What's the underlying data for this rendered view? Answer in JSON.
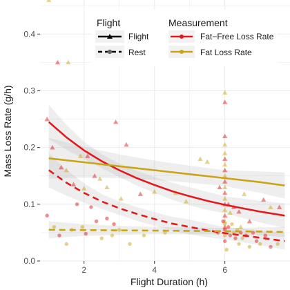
{
  "chart_data": {
    "type": "scatter",
    "xlabel": "Flight Duration (h)",
    "ylabel": "Mass Loss Rate (g/h)",
    "xlim": [
      0.75,
      7.85
    ],
    "ylim": [
      0,
      0.46
    ],
    "x_ticks": [
      2,
      4,
      6
    ],
    "x_tick_labels": [
      "2",
      "4",
      "6"
    ],
    "y_ticks": [
      0.0,
      0.1,
      0.2,
      0.3,
      0.4
    ],
    "y_tick_labels": [
      "0.0",
      "0.1",
      "0.2",
      "0.3",
      "0.4"
    ],
    "grid": true,
    "background": "#ffffff",
    "grid_color": "#ebebeb",
    "legend_placement": "top-center",
    "legends": [
      {
        "title": "Flight",
        "entries": [
          {
            "label": "Flight",
            "linetype": "solid",
            "shape": "triangle"
          },
          {
            "label": "Rest",
            "linetype": "dashed",
            "shape": "circle"
          }
        ]
      },
      {
        "title": "Measurement",
        "entries": [
          {
            "label": "Fat−Free Loss Rate",
            "color": "#e31a1c"
          },
          {
            "label": "Fat Loss Rate",
            "color": "#c9a515"
          }
        ]
      }
    ],
    "colors": {
      "Fat−Free Loss Rate": "#e31a1c",
      "Fat Loss Rate": "#c9a515",
      "ribbon": "#b3b3b3"
    },
    "fitted_curves": [
      {
        "measurement": "Fat−Free Loss Rate",
        "group": "Flight",
        "x": [
          1.0,
          1.5,
          2.0,
          2.5,
          3.0,
          3.5,
          4.0,
          4.5,
          5.0,
          5.5,
          6.0,
          6.5,
          7.0,
          7.7
        ],
        "y": [
          0.245,
          0.218,
          0.195,
          0.176,
          0.16,
          0.146,
          0.134,
          0.123,
          0.114,
          0.106,
          0.099,
          0.093,
          0.087,
          0.08
        ],
        "ci_low": [
          0.215,
          0.196,
          0.18,
          0.164,
          0.148,
          0.133,
          0.12,
          0.108,
          0.098,
          0.09,
          0.084,
          0.076,
          0.068,
          0.058
        ],
        "ci_high": [
          0.275,
          0.24,
          0.21,
          0.188,
          0.172,
          0.159,
          0.148,
          0.138,
          0.13,
          0.122,
          0.114,
          0.11,
          0.106,
          0.102
        ]
      },
      {
        "measurement": "Fat Loss Rate",
        "group": "Flight",
        "x": [
          1.0,
          2.0,
          3.0,
          4.0,
          5.0,
          6.0,
          7.0,
          7.7
        ],
        "y": [
          0.181,
          0.174,
          0.167,
          0.16,
          0.153,
          0.146,
          0.139,
          0.133
        ],
        "ci_low": [
          0.145,
          0.147,
          0.146,
          0.143,
          0.138,
          0.132,
          0.12,
          0.11
        ],
        "ci_high": [
          0.217,
          0.201,
          0.188,
          0.177,
          0.168,
          0.16,
          0.158,
          0.156
        ]
      },
      {
        "measurement": "Fat−Free Loss Rate",
        "group": "Rest",
        "x": [
          1.0,
          1.5,
          2.0,
          2.5,
          3.0,
          3.5,
          4.0,
          4.5,
          5.0,
          5.5,
          6.0,
          6.5,
          7.0,
          7.7
        ],
        "y": [
          0.16,
          0.138,
          0.12,
          0.105,
          0.093,
          0.083,
          0.074,
          0.066,
          0.06,
          0.054,
          0.049,
          0.045,
          0.041,
          0.035
        ],
        "ci_low": [
          0.13,
          0.115,
          0.103,
          0.092,
          0.081,
          0.071,
          0.062,
          0.054,
          0.047,
          0.042,
          0.038,
          0.033,
          0.028,
          0.02
        ],
        "ci_high": [
          0.19,
          0.161,
          0.137,
          0.118,
          0.105,
          0.095,
          0.086,
          0.078,
          0.073,
          0.066,
          0.06,
          0.057,
          0.054,
          0.05
        ]
      },
      {
        "measurement": "Fat Loss Rate",
        "group": "Rest",
        "x": [
          1.0,
          2.0,
          3.0,
          4.0,
          5.0,
          6.0,
          7.0,
          7.7
        ],
        "y": [
          0.055,
          0.0545,
          0.054,
          0.0535,
          0.053,
          0.0525,
          0.052,
          0.051
        ],
        "ci_low": [
          0.04,
          0.044,
          0.046,
          0.047,
          0.047,
          0.047,
          0.045,
          0.042
        ],
        "ci_high": [
          0.07,
          0.065,
          0.062,
          0.06,
          0.059,
          0.058,
          0.059,
          0.06
        ]
      }
    ],
    "points": [
      {
        "x": 0.95,
        "y": 0.25,
        "shape": "triangle",
        "measurement": "Fat−Free Loss Rate"
      },
      {
        "x": 1.25,
        "y": 0.35,
        "shape": "triangle",
        "measurement": "Fat−Free Loss Rate"
      },
      {
        "x": 1.55,
        "y": 0.35,
        "shape": "triangle",
        "measurement": "Fat Loss Rate"
      },
      {
        "x": 1.0,
        "y": 0.46,
        "shape": "triangle",
        "measurement": "Fat Loss Rate"
      },
      {
        "x": 1.1,
        "y": 0.2,
        "shape": "triangle",
        "measurement": "Fat−Free Loss Rate"
      },
      {
        "x": 1.35,
        "y": 0.165,
        "shape": "triangle",
        "measurement": "Fat−Free Loss Rate"
      },
      {
        "x": 1.5,
        "y": 0.16,
        "shape": "triangle",
        "measurement": "Fat Loss Rate"
      },
      {
        "x": 1.9,
        "y": 0.185,
        "shape": "triangle",
        "measurement": "Fat Loss Rate"
      },
      {
        "x": 2.1,
        "y": 0.185,
        "shape": "triangle",
        "measurement": "Fat−Free Loss Rate"
      },
      {
        "x": 1.7,
        "y": 0.135,
        "shape": "triangle",
        "measurement": "Fat−Free Loss Rate"
      },
      {
        "x": 2.0,
        "y": 0.128,
        "shape": "triangle",
        "measurement": "Fat Loss Rate"
      },
      {
        "x": 2.3,
        "y": 0.15,
        "shape": "triangle",
        "measurement": "Fat−Free Loss Rate"
      },
      {
        "x": 2.45,
        "y": 0.145,
        "shape": "triangle",
        "measurement": "Fat Loss Rate"
      },
      {
        "x": 2.9,
        "y": 0.245,
        "shape": "triangle",
        "measurement": "Fat−Free Loss Rate"
      },
      {
        "x": 2.65,
        "y": 0.13,
        "shape": "triangle",
        "measurement": "Fat Loss Rate"
      },
      {
        "x": 3.2,
        "y": 0.205,
        "shape": "triangle",
        "measurement": "Fat−Free Loss Rate"
      },
      {
        "x": 3.05,
        "y": 0.11,
        "shape": "triangle",
        "measurement": "Fat Loss Rate"
      },
      {
        "x": 3.6,
        "y": 0.118,
        "shape": "triangle",
        "measurement": "Fat−Free Loss Rate"
      },
      {
        "x": 4.0,
        "y": 0.122,
        "shape": "triangle",
        "measurement": "Fat Loss Rate"
      },
      {
        "x": 4.6,
        "y": 0.12,
        "shape": "triangle",
        "measurement": "Fat Loss Rate"
      },
      {
        "x": 4.9,
        "y": 0.105,
        "shape": "triangle",
        "measurement": "Fat Loss Rate"
      },
      {
        "x": 5.3,
        "y": 0.18,
        "shape": "triangle",
        "measurement": "Fat Loss Rate"
      },
      {
        "x": 5.5,
        "y": 0.175,
        "shape": "triangle",
        "measurement": "Fat Loss Rate"
      },
      {
        "x": 5.85,
        "y": 0.13,
        "shape": "triangle",
        "measurement": "Fat−Free Loss Rate"
      },
      {
        "x": 6.0,
        "y": 0.297,
        "shape": "triangle",
        "measurement": "Fat Loss Rate"
      },
      {
        "x": 6.0,
        "y": 0.28,
        "shape": "triangle",
        "measurement": "Fat−Free Loss Rate"
      },
      {
        "x": 6.0,
        "y": 0.22,
        "shape": "triangle",
        "measurement": "Fat−Free Loss Rate"
      },
      {
        "x": 6.0,
        "y": 0.205,
        "shape": "triangle",
        "measurement": "Fat Loss Rate"
      },
      {
        "x": 6.0,
        "y": 0.19,
        "shape": "triangle",
        "measurement": "Fat Loss Rate"
      },
      {
        "x": 6.0,
        "y": 0.18,
        "shape": "triangle",
        "measurement": "Fat−Free Loss Rate"
      },
      {
        "x": 6.0,
        "y": 0.17,
        "shape": "triangle",
        "measurement": "Fat Loss Rate"
      },
      {
        "x": 6.0,
        "y": 0.16,
        "shape": "triangle",
        "measurement": "Fat−Free Loss Rate"
      },
      {
        "x": 6.0,
        "y": 0.15,
        "shape": "triangle",
        "measurement": "Fat Loss Rate"
      },
      {
        "x": 6.0,
        "y": 0.14,
        "shape": "triangle",
        "measurement": "Fat−Free Loss Rate"
      },
      {
        "x": 6.0,
        "y": 0.13,
        "shape": "triangle",
        "measurement": "Fat Loss Rate"
      },
      {
        "x": 6.0,
        "y": 0.12,
        "shape": "triangle",
        "measurement": "Fat−Free Loss Rate"
      },
      {
        "x": 6.0,
        "y": 0.11,
        "shape": "triangle",
        "measurement": "Fat Loss Rate"
      },
      {
        "x": 6.0,
        "y": 0.1,
        "shape": "triangle",
        "measurement": "Fat−Free Loss Rate"
      },
      {
        "x": 6.0,
        "y": 0.09,
        "shape": "triangle",
        "measurement": "Fat Loss Rate"
      },
      {
        "x": 6.0,
        "y": 0.08,
        "shape": "triangle",
        "measurement": "Fat−Free Loss Rate"
      },
      {
        "x": 6.0,
        "y": 0.07,
        "shape": "triangle",
        "measurement": "Fat Loss Rate"
      },
      {
        "x": 6.0,
        "y": 0.06,
        "shape": "triangle",
        "measurement": "Fat−Free Loss Rate"
      },
      {
        "x": 6.1,
        "y": 0.1,
        "shape": "triangle",
        "measurement": "Fat−Free Loss Rate"
      },
      {
        "x": 6.15,
        "y": 0.085,
        "shape": "triangle",
        "measurement": "Fat Loss Rate"
      },
      {
        "x": 6.25,
        "y": 0.095,
        "shape": "triangle",
        "measurement": "Fat−Free Loss Rate"
      },
      {
        "x": 6.4,
        "y": 0.087,
        "shape": "triangle",
        "measurement": "Fat−Free Loss Rate"
      },
      {
        "x": 6.45,
        "y": 0.06,
        "shape": "triangle",
        "measurement": "Fat Loss Rate"
      },
      {
        "x": 6.55,
        "y": 0.118,
        "shape": "triangle",
        "measurement": "Fat Loss Rate"
      },
      {
        "x": 6.7,
        "y": 0.07,
        "shape": "triangle",
        "measurement": "Fat−Free Loss Rate"
      },
      {
        "x": 7.1,
        "y": 0.108,
        "shape": "triangle",
        "measurement": "Fat−Free Loss Rate"
      },
      {
        "x": 7.3,
        "y": 0.095,
        "shape": "triangle",
        "measurement": "Fat Loss Rate"
      },
      {
        "x": 7.55,
        "y": 0.095,
        "shape": "triangle",
        "measurement": "Fat−Free Loss Rate"
      },
      {
        "x": 0.95,
        "y": 0.08,
        "shape": "circle",
        "measurement": "Fat−Free Loss Rate"
      },
      {
        "x": 1.15,
        "y": 0.06,
        "shape": "circle",
        "measurement": "Fat Loss Rate"
      },
      {
        "x": 1.3,
        "y": 0.045,
        "shape": "circle",
        "measurement": "Fat−Free Loss Rate"
      },
      {
        "x": 1.5,
        "y": 0.03,
        "shape": "circle",
        "measurement": "Fat Loss Rate"
      },
      {
        "x": 1.65,
        "y": 0.055,
        "shape": "circle",
        "measurement": "Fat Loss Rate"
      },
      {
        "x": 1.8,
        "y": 0.1,
        "shape": "circle",
        "measurement": "Fat−Free Loss Rate"
      },
      {
        "x": 1.95,
        "y": 0.06,
        "shape": "circle",
        "measurement": "Fat Loss Rate"
      },
      {
        "x": 2.05,
        "y": 0.048,
        "shape": "circle",
        "measurement": "Fat−Free Loss Rate"
      },
      {
        "x": 2.2,
        "y": 0.095,
        "shape": "circle",
        "measurement": "Fat−Free Loss Rate"
      },
      {
        "x": 2.35,
        "y": 0.07,
        "shape": "circle",
        "measurement": "Fat−Free Loss Rate"
      },
      {
        "x": 2.5,
        "y": 0.04,
        "shape": "circle",
        "measurement": "Fat Loss Rate"
      },
      {
        "x": 2.65,
        "y": 0.075,
        "shape": "circle",
        "measurement": "Fat−Free Loss Rate"
      },
      {
        "x": 2.8,
        "y": 0.045,
        "shape": "circle",
        "measurement": "Fat Loss Rate"
      },
      {
        "x": 2.85,
        "y": 0.065,
        "shape": "circle",
        "measurement": "Fat−Free Loss Rate"
      },
      {
        "x": 3.0,
        "y": 0.055,
        "shape": "circle",
        "measurement": "Fat Loss Rate"
      },
      {
        "x": 3.3,
        "y": 0.03,
        "shape": "circle",
        "measurement": "Fat Loss Rate"
      },
      {
        "x": 3.7,
        "y": 0.045,
        "shape": "circle",
        "measurement": "Fat Loss Rate"
      },
      {
        "x": 4.3,
        "y": 0.05,
        "shape": "circle",
        "measurement": "Fat Loss Rate"
      },
      {
        "x": 5.8,
        "y": 0.05,
        "shape": "circle",
        "measurement": "Fat−Free Loss Rate"
      },
      {
        "x": 5.95,
        "y": 0.07,
        "shape": "circle",
        "measurement": "Fat−Free Loss Rate"
      },
      {
        "x": 6.0,
        "y": 0.065,
        "shape": "circle",
        "measurement": "Fat Loss Rate"
      },
      {
        "x": 6.0,
        "y": 0.055,
        "shape": "circle",
        "measurement": "Fat−Free Loss Rate"
      },
      {
        "x": 6.0,
        "y": 0.045,
        "shape": "circle",
        "measurement": "Fat Loss Rate"
      },
      {
        "x": 6.0,
        "y": 0.035,
        "shape": "circle",
        "measurement": "Fat−Free Loss Rate"
      },
      {
        "x": 6.05,
        "y": 0.02,
        "shape": "circle",
        "measurement": "Fat Loss Rate"
      },
      {
        "x": 6.1,
        "y": 0.06,
        "shape": "circle",
        "measurement": "Fat−Free Loss Rate"
      },
      {
        "x": 6.15,
        "y": 0.045,
        "shape": "circle",
        "measurement": "Fat−Free Loss Rate"
      },
      {
        "x": 6.2,
        "y": 0.065,
        "shape": "circle",
        "measurement": "Fat Loss Rate"
      },
      {
        "x": 6.25,
        "y": 0.05,
        "shape": "circle",
        "measurement": "Fat Loss Rate"
      },
      {
        "x": 6.3,
        "y": 0.04,
        "shape": "circle",
        "measurement": "Fat−Free Loss Rate"
      },
      {
        "x": 6.35,
        "y": 0.055,
        "shape": "circle",
        "measurement": "Fat Loss Rate"
      },
      {
        "x": 6.4,
        "y": 0.03,
        "shape": "circle",
        "measurement": "Fat Loss Rate"
      },
      {
        "x": 6.45,
        "y": 0.05,
        "shape": "circle",
        "measurement": "Fat−Free Loss Rate"
      },
      {
        "x": 6.5,
        "y": 0.04,
        "shape": "circle",
        "measurement": "Fat Loss Rate"
      },
      {
        "x": 6.6,
        "y": 0.045,
        "shape": "circle",
        "measurement": "Fat−Free Loss Rate"
      },
      {
        "x": 6.7,
        "y": 0.025,
        "shape": "circle",
        "measurement": "Fat Loss Rate"
      },
      {
        "x": 6.8,
        "y": 0.05,
        "shape": "circle",
        "measurement": "Fat−Free Loss Rate"
      },
      {
        "x": 6.9,
        "y": 0.035,
        "shape": "circle",
        "measurement": "Fat−Free Loss Rate"
      },
      {
        "x": 7.0,
        "y": 0.03,
        "shape": "circle",
        "measurement": "Fat Loss Rate"
      },
      {
        "x": 7.15,
        "y": 0.045,
        "shape": "circle",
        "measurement": "Fat−Free Loss Rate"
      },
      {
        "x": 7.3,
        "y": 0.025,
        "shape": "circle",
        "measurement": "Fat−Free Loss Rate"
      },
      {
        "x": 7.5,
        "y": 0.03,
        "shape": "circle",
        "measurement": "Fat Loss Rate"
      }
    ]
  }
}
